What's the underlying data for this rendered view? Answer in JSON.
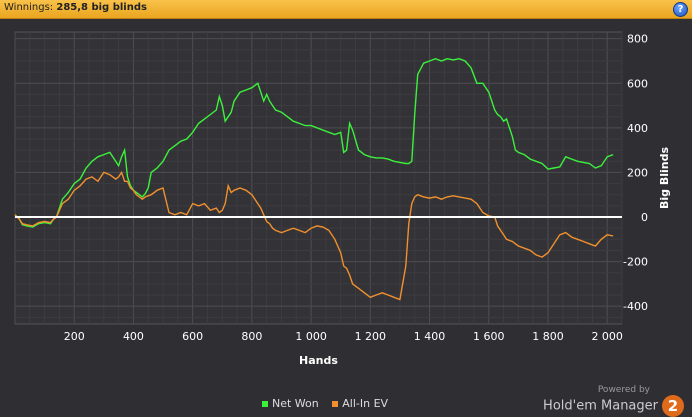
{
  "header": {
    "label": "Winnings:",
    "value": "285,8 big blinds",
    "help_label": "?"
  },
  "brand": {
    "powered_by": "Powered by",
    "product": "Hold'em Manager",
    "version": "2"
  },
  "colors": {
    "net_won": "#3bf23b",
    "all_in_ev": "#f0902e",
    "zero_line": "#ffffff",
    "grid": "#4a4a4e"
  },
  "chart_data": {
    "type": "line",
    "xlabel": "Hands",
    "ylabel": "Big Blinds",
    "xlim": [
      0,
      2050
    ],
    "ylim": [
      -480,
      830
    ],
    "x_ticks": [
      200,
      400,
      600,
      800,
      1000,
      1200,
      1400,
      1600,
      1800,
      2000
    ],
    "x_tick_labels": [
      "200",
      "400",
      "600",
      "800",
      "1 000",
      "1 200",
      "1 400",
      "1 600",
      "1 800",
      "2 000"
    ],
    "y_ticks": [
      800,
      600,
      400,
      200,
      0,
      -200,
      -400
    ],
    "y_tick_labels": [
      "800",
      "600",
      "400",
      "200",
      "0",
      "-200",
      "-400"
    ],
    "grid": true,
    "legend_position": "bottom-center",
    "series": [
      {
        "name": "Net Won",
        "color": "#3bf23b",
        "x": [
          0,
          15,
          25,
          40,
          60,
          80,
          100,
          120,
          130,
          140,
          150,
          160,
          180,
          200,
          220,
          240,
          260,
          280,
          300,
          320,
          340,
          350,
          360,
          370,
          380,
          390,
          400,
          410,
          420,
          430,
          440,
          450,
          460,
          470,
          480,
          500,
          520,
          540,
          560,
          580,
          600,
          620,
          640,
          660,
          680,
          690,
          700,
          710,
          720,
          730,
          740,
          760,
          780,
          800,
          820,
          830,
          840,
          850,
          860,
          870,
          880,
          900,
          920,
          940,
          960,
          980,
          1000,
          1020,
          1040,
          1060,
          1080,
          1100,
          1110,
          1120,
          1130,
          1140,
          1160,
          1180,
          1200,
          1220,
          1240,
          1260,
          1280,
          1300,
          1320,
          1330,
          1340,
          1350,
          1360,
          1380,
          1400,
          1420,
          1440,
          1460,
          1480,
          1500,
          1520,
          1540,
          1560,
          1580,
          1600,
          1620,
          1630,
          1640,
          1650,
          1660,
          1680,
          1690,
          1700,
          1720,
          1740,
          1760,
          1780,
          1800,
          1820,
          1840,
          1860,
          1880,
          1900,
          1920,
          1940,
          1960,
          1980,
          2000,
          2020
        ],
        "y": [
          10,
          -10,
          -35,
          -40,
          -45,
          -30,
          -25,
          -30,
          -10,
          0,
          40,
          80,
          110,
          150,
          170,
          220,
          250,
          270,
          280,
          290,
          250,
          230,
          270,
          300,
          180,
          140,
          120,
          110,
          100,
          90,
          105,
          130,
          200,
          210,
          220,
          250,
          300,
          320,
          340,
          350,
          380,
          420,
          440,
          460,
          480,
          540,
          500,
          430,
          450,
          470,
          520,
          560,
          570,
          580,
          600,
          560,
          520,
          550,
          520,
          500,
          480,
          470,
          450,
          430,
          420,
          410,
          410,
          400,
          390,
          380,
          370,
          380,
          290,
          300,
          420,
          390,
          300,
          280,
          270,
          265,
          265,
          260,
          250,
          245,
          240,
          240,
          250,
          460,
          640,
          690,
          700,
          710,
          700,
          710,
          705,
          710,
          700,
          670,
          600,
          600,
          560,
          480,
          460,
          450,
          430,
          440,
          360,
          300,
          290,
          280,
          260,
          250,
          240,
          215,
          220,
          225,
          270,
          260,
          250,
          245,
          240,
          220,
          230,
          270,
          280
        ]
      },
      {
        "name": "All-In EV",
        "color": "#f0902e",
        "x": [
          0,
          15,
          25,
          40,
          60,
          80,
          100,
          120,
          130,
          140,
          150,
          160,
          180,
          200,
          220,
          240,
          260,
          280,
          300,
          320,
          340,
          350,
          360,
          370,
          380,
          390,
          400,
          410,
          420,
          430,
          440,
          450,
          460,
          470,
          480,
          500,
          520,
          540,
          560,
          580,
          600,
          620,
          640,
          660,
          680,
          690,
          700,
          710,
          720,
          730,
          740,
          760,
          780,
          800,
          820,
          830,
          840,
          850,
          860,
          870,
          880,
          900,
          920,
          940,
          960,
          980,
          1000,
          1020,
          1040,
          1060,
          1080,
          1100,
          1110,
          1120,
          1130,
          1140,
          1160,
          1180,
          1200,
          1220,
          1240,
          1260,
          1280,
          1300,
          1320,
          1330,
          1340,
          1350,
          1360,
          1380,
          1400,
          1420,
          1440,
          1460,
          1480,
          1500,
          1520,
          1540,
          1560,
          1580,
          1600,
          1620,
          1630,
          1640,
          1650,
          1660,
          1680,
          1690,
          1700,
          1720,
          1740,
          1760,
          1780,
          1800,
          1820,
          1840,
          1860,
          1880,
          1900,
          1920,
          1940,
          1960,
          1980,
          2000,
          2020
        ],
        "y": [
          10,
          -10,
          -30,
          -35,
          -40,
          -25,
          -20,
          -25,
          -10,
          0,
          30,
          60,
          80,
          120,
          140,
          170,
          180,
          160,
          200,
          190,
          170,
          180,
          200,
          160,
          160,
          130,
          120,
          100,
          90,
          80,
          90,
          95,
          100,
          110,
          120,
          130,
          20,
          10,
          20,
          10,
          60,
          50,
          60,
          30,
          40,
          20,
          30,
          60,
          140,
          110,
          120,
          130,
          120,
          100,
          60,
          40,
          10,
          -20,
          -30,
          -50,
          -60,
          -70,
          -60,
          -50,
          -60,
          -70,
          -50,
          -40,
          -45,
          -60,
          -100,
          -160,
          -220,
          -230,
          -260,
          -300,
          -320,
          -340,
          -360,
          -350,
          -340,
          -350,
          -360,
          -370,
          -220,
          -30,
          60,
          90,
          100,
          90,
          85,
          90,
          80,
          90,
          95,
          90,
          85,
          80,
          60,
          20,
          5,
          0,
          -40,
          -60,
          -80,
          -100,
          -110,
          -120,
          -130,
          -140,
          -150,
          -170,
          -180,
          -160,
          -120,
          -80,
          -70,
          -90,
          -100,
          -110,
          -120,
          -130,
          -100,
          -80,
          -85
        ]
      }
    ]
  }
}
